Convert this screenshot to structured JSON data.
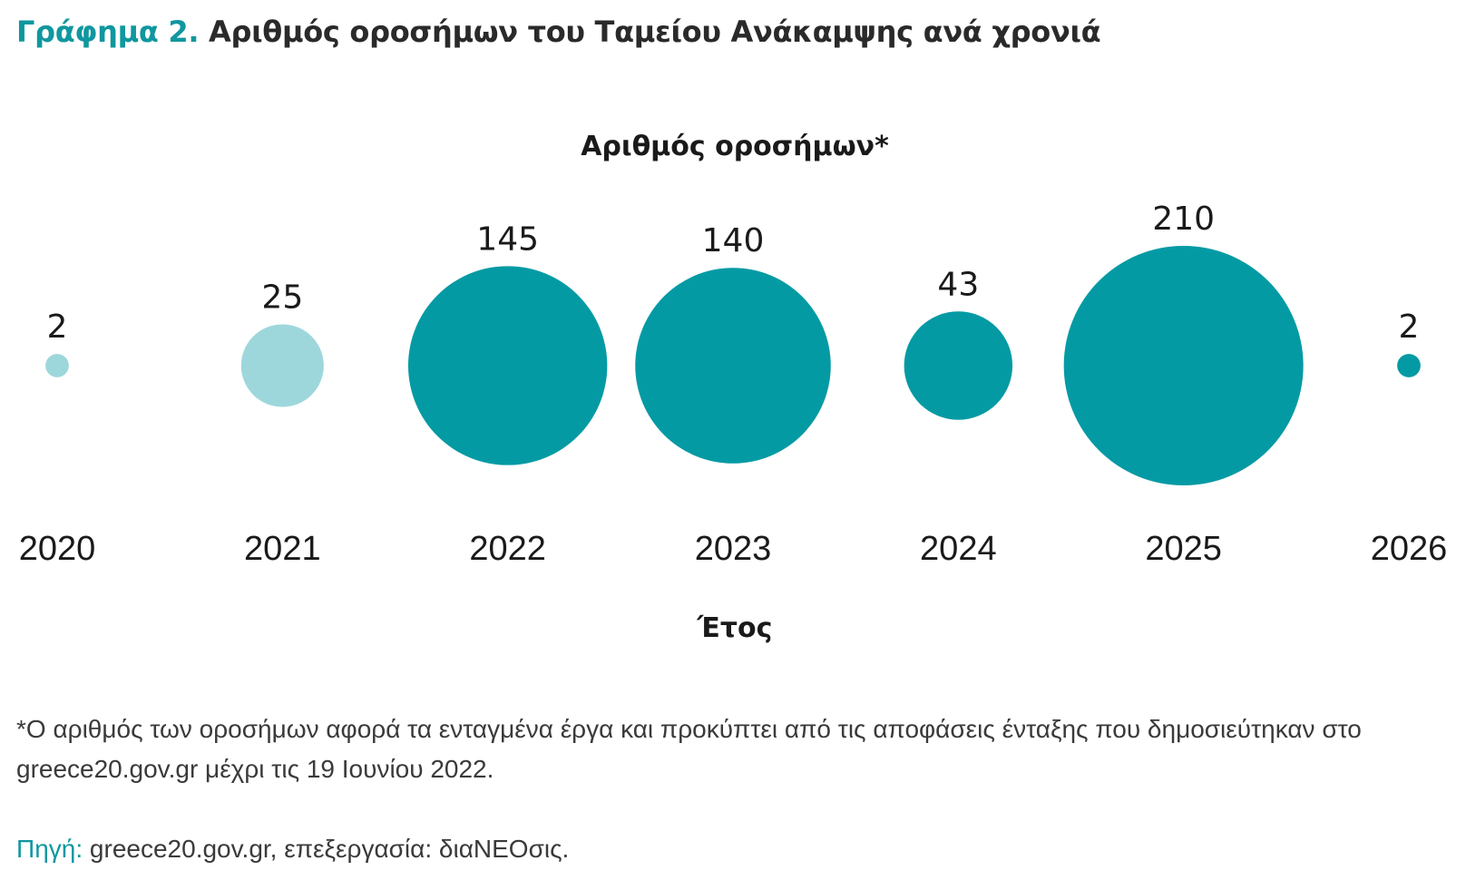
{
  "header": {
    "prefix": "Γράφημα 2.",
    "title": "Αριθμός οροσήμων του Ταμείου Ανάκαμψης ανά χρονιά"
  },
  "colors": {
    "accent": "#10979f",
    "bubble_dark": "#049aa4",
    "bubble_light": "#9dd7dc",
    "text": "#1a1a1a"
  },
  "chart_data": {
    "type": "bubble",
    "title": "Αριθμός οροσήμων*",
    "xlabel": "Έτος",
    "categories": [
      "2020",
      "2021",
      "2022",
      "2023",
      "2024",
      "2025",
      "2026"
    ],
    "values": [
      2,
      25,
      145,
      140,
      43,
      210,
      2
    ],
    "point_styles": [
      "light",
      "light",
      "dark",
      "dark",
      "dark",
      "dark",
      "dark"
    ]
  },
  "footnote": "*Ο αριθμός των οροσήμων αφορά τα ενταγμένα έργα και προκύπτει από τις αποφάσεις ένταξης που δημοσιεύτηκαν στο greece20.gov.gr μέχρι τις 19 Ιουνίου 2022.",
  "source": {
    "label": "Πηγή:",
    "text": " greece20.gov.gr, επεξεργασία: διαΝΕΟσις."
  }
}
